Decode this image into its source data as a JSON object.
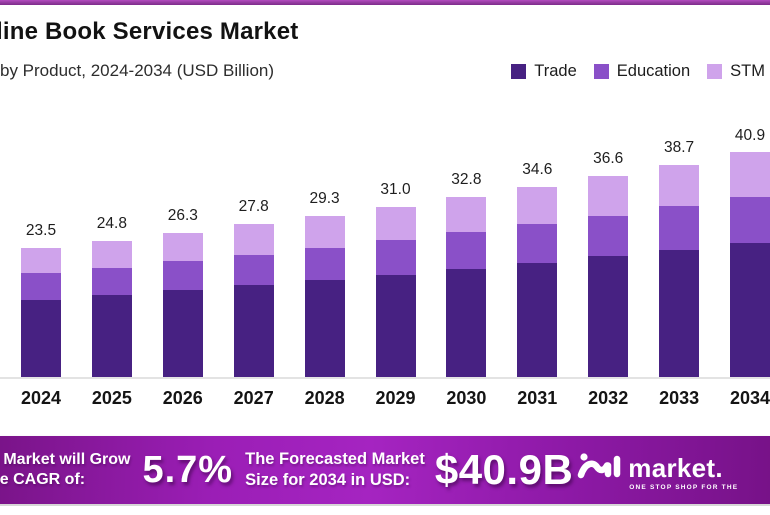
{
  "header": {
    "title": "line Book Services Market",
    "subtitle": "by Product, 2024-2034 (USD Billion)"
  },
  "legend": [
    {
      "label": "Trade",
      "color": "#472182"
    },
    {
      "label": "Education",
      "color": "#8a50c8"
    },
    {
      "label": "STM",
      "color": "#cfa3eb"
    }
  ],
  "chart_data": {
    "type": "bar",
    "stacked": true,
    "title": "line Book Services Market",
    "subtitle": "by Product, 2024-2034 (USD Billion)",
    "unit": "USD Billion",
    "xlabel": "",
    "ylabel": "",
    "grid": false,
    "legend_position": "top-right",
    "categories": [
      "2024",
      "2025",
      "2026",
      "2027",
      "2028",
      "2029",
      "2030",
      "2031",
      "2032",
      "2033",
      "2034"
    ],
    "totals": [
      23.5,
      24.8,
      26.3,
      27.8,
      29.3,
      31.0,
      32.8,
      34.6,
      36.6,
      38.7,
      40.9
    ],
    "series": [
      {
        "name": "Trade",
        "color": "#472182",
        "values": [
          14.1,
          14.9,
          15.8,
          16.7,
          17.6,
          18.6,
          19.7,
          20.8,
          22.0,
          23.2,
          24.4
        ]
      },
      {
        "name": "Education",
        "color": "#8a50c8",
        "values": [
          4.8,
          5.0,
          5.3,
          5.6,
          5.9,
          6.3,
          6.7,
          7.0,
          7.4,
          7.9,
          8.3
        ]
      },
      {
        "name": "STM",
        "color": "#cfa3eb",
        "values": [
          4.6,
          4.9,
          5.2,
          5.5,
          5.8,
          6.1,
          6.4,
          6.8,
          7.2,
          7.6,
          8.2
        ]
      }
    ],
    "ylim": [
      0,
      44
    ]
  },
  "banner": {
    "growth_line1": "e Market will Grow",
    "growth_line2": "he CAGR of:",
    "cagr_value": "5.7%",
    "forecast_line1": "The Forecasted Market",
    "forecast_line2": "Size for 2034 in USD:",
    "forecast_value": "$40.9B",
    "logo_text": "market.",
    "logo_tagline": "ONE STOP SHOP FOR THE"
  },
  "colors": {
    "top_line": "#933a9f",
    "axis_line": "#e3e3e3",
    "banner_purple": "#a524c1",
    "tagline_pink": "#f5527d"
  }
}
